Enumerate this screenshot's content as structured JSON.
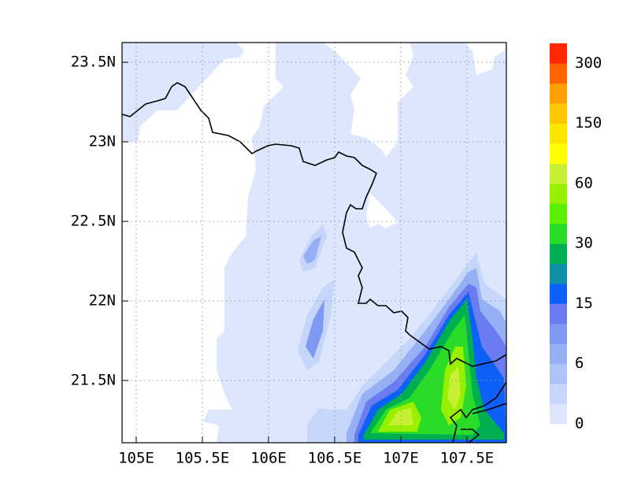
{
  "map": {
    "xlim": [
      104.893,
      107.798
    ],
    "ylim": [
      21.109,
      23.624
    ],
    "xticks": [
      {
        "value": 105,
        "label": "105E"
      },
      {
        "value": 105.5,
        "label": "105.5E"
      },
      {
        "value": 106,
        "label": "106E"
      },
      {
        "value": 106.5,
        "label": "106.5E"
      },
      {
        "value": 107,
        "label": "107E"
      },
      {
        "value": 107.5,
        "label": "107.5E"
      }
    ],
    "yticks": [
      {
        "value": 21.5,
        "label": "21.5N"
      },
      {
        "value": 22,
        "label": "22N"
      },
      {
        "value": 22.5,
        "label": "22.5N"
      },
      {
        "value": 23,
        "label": "23N"
      },
      {
        "value": 23.5,
        "label": "23.5N"
      }
    ],
    "grid": true,
    "colorbar": {
      "colors": [
        "#dce6fc",
        "#c6d6fa",
        "#aec3f7",
        "#96b0f5",
        "#7f99f2",
        "#6a7cf0",
        "#0d60f8",
        "#1090a8",
        "#00b050",
        "#28dc28",
        "#5af000",
        "#96f000",
        "#c8f032",
        "#ffff00",
        "#ffe600",
        "#ffc800",
        "#ffa000",
        "#ff6400",
        "#ff2800"
      ],
      "labels": [
        "0",
        "6",
        "15",
        "30",
        "60",
        "150",
        "300"
      ]
    }
  }
}
